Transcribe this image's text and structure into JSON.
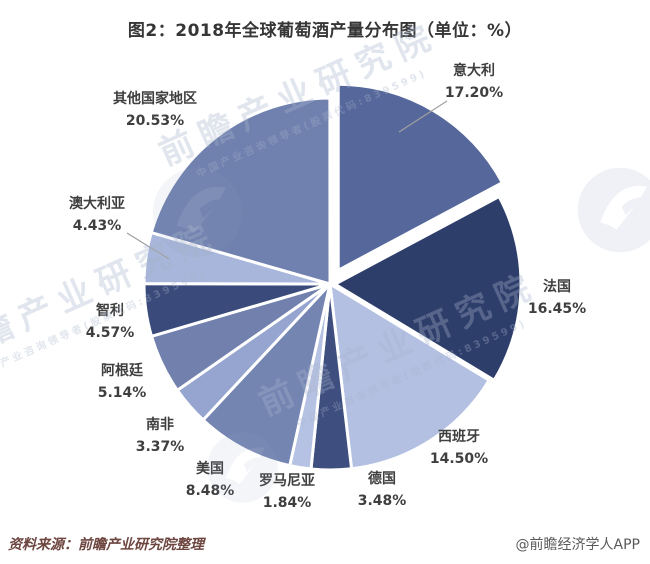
{
  "page": {
    "title": "图2：2018年全球葡萄酒产量分布图（单位：%）"
  },
  "chart_data": {
    "type": "pie",
    "title": "图2：2018年全球葡萄酒产量分布图（单位：%）",
    "unit": "%",
    "legend_position": "none",
    "label_style": "category-name-with-percentage-outside",
    "categories": [
      "意大利",
      "法国",
      "西班牙",
      "德国",
      "罗马尼亚",
      "美国",
      "南非",
      "阿根廷",
      "智利",
      "澳大利亚",
      "其他国家地区"
    ],
    "values": [
      17.2,
      16.45,
      14.5,
      3.48,
      1.84,
      8.48,
      3.37,
      5.14,
      4.57,
      4.43,
      20.53
    ],
    "start_angle_deg": 0,
    "clockwise": true,
    "slices": [
      {
        "label": "意大利",
        "value": 17.2,
        "display": "17.20%",
        "color": "#56689b",
        "explode": 16
      },
      {
        "label": "法国",
        "value": 16.45,
        "display": "16.45%",
        "color": "#2e3e6b",
        "explode": 5
      },
      {
        "label": "西班牙",
        "value": 14.5,
        "display": "14.50%",
        "color": "#b3c0e2",
        "explode": 0
      },
      {
        "label": "德国",
        "value": 3.48,
        "display": "3.48%",
        "color": "#3e4e7e",
        "explode": 0
      },
      {
        "label": "罗马尼亚",
        "value": 1.84,
        "display": "1.84%",
        "color": "#b6c2e3",
        "explode": 0
      },
      {
        "label": "美国",
        "value": 8.48,
        "display": "8.48%",
        "color": "#7485b2",
        "explode": 0
      },
      {
        "label": "南非",
        "value": 3.37,
        "display": "3.37%",
        "color": "#96a5cf",
        "explode": 0
      },
      {
        "label": "阿根廷",
        "value": 5.14,
        "display": "5.14%",
        "color": "#7180ad",
        "explode": 0
      },
      {
        "label": "智利",
        "value": 4.57,
        "display": "4.57%",
        "color": "#3a4a7a",
        "explode": 0
      },
      {
        "label": "澳大利亚",
        "value": 4.43,
        "display": "4.43%",
        "color": "#a7b6da",
        "explode": 0
      },
      {
        "label": "其他国家地区",
        "value": 20.53,
        "display": "20.53%",
        "color": "#7081af",
        "explode": 0
      }
    ],
    "slice_border_color": "#ffffff",
    "leader_line_color": "#a0a0a0"
  },
  "footer": {
    "source": "资料来源：前瞻产业研究院整理",
    "credit": "@前瞻经济学人APP"
  },
  "watermark": {
    "text": "前瞻产业研究院",
    "subtext": "中国产业咨询领导者(股票代码:839599)",
    "logo": "qianzhan-bird-logo"
  }
}
